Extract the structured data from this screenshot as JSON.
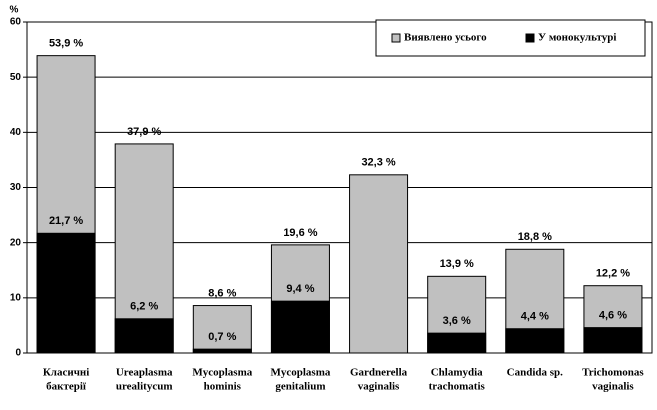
{
  "chart_data": {
    "type": "overlap-bar",
    "y_label": "%",
    "categories": [
      [
        "Класичні",
        "бактерії"
      ],
      [
        "Ureaplasma",
        "urealitycum"
      ],
      [
        "Mycoplasma",
        "hominis"
      ],
      [
        "Mycoplasma",
        "genitalium"
      ],
      [
        "Gardnerella",
        "vaginalis"
      ],
      [
        "Chlamydia",
        "trachomatis"
      ],
      [
        "Candida sp."
      ],
      [
        "Trichomonas",
        "vaginalis"
      ]
    ],
    "series": [
      {
        "name": "Виявлено усього",
        "color": "#c0c0c0",
        "values": [
          53.9,
          37.9,
          8.6,
          19.6,
          32.3,
          13.9,
          18.8,
          12.2
        ],
        "value_labels": [
          "53,9 %",
          "37,9 %",
          "8,6 %",
          "19,6 %",
          "32,3 %",
          "13,9 %",
          "18,8 %",
          "12,2 %"
        ]
      },
      {
        "name": "У монокультурі",
        "color": "#000000",
        "values": [
          21.7,
          6.2,
          0.7,
          9.4,
          null,
          3.6,
          4.4,
          4.6
        ],
        "value_labels": [
          "21,7 %",
          "6,2 %",
          "0,7 %",
          "9,4 %",
          null,
          "3,6 %",
          "4,4 %",
          "4,6 %"
        ]
      }
    ],
    "ylim": [
      0,
      60
    ],
    "yticks": [
      0,
      10,
      20,
      30,
      40,
      50,
      60
    ],
    "grid": true,
    "legend": "top-right"
  }
}
